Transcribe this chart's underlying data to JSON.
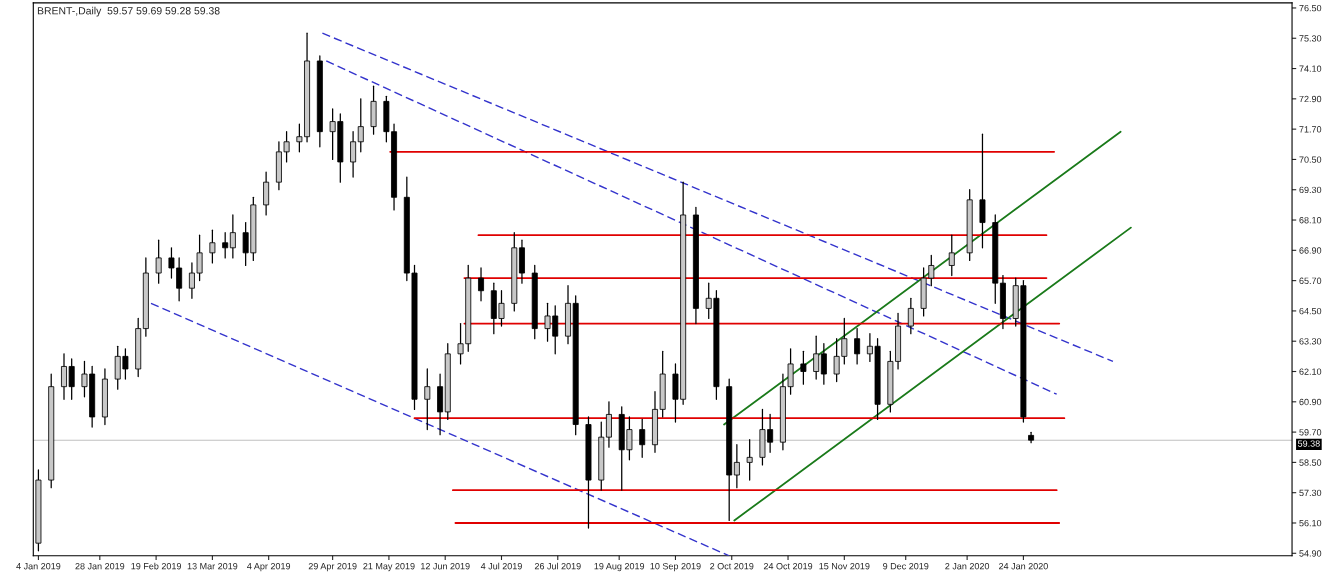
{
  "chart_data": {
    "type": "candlestick",
    "title": "BRENT-,Daily  59.57 59.69 59.28 59.38",
    "xlim": [
      "2019-01-02",
      "2020-05-08"
    ],
    "ylim": [
      54.8,
      76.7
    ],
    "xticks": [
      {
        "value": "2019-01-04",
        "label": "4 Jan 2019"
      },
      {
        "value": "2019-01-28",
        "label": "28 Jan 2019"
      },
      {
        "value": "2019-02-19",
        "label": "19 Feb 2019"
      },
      {
        "value": "2019-03-13",
        "label": "13 Mar 2019"
      },
      {
        "value": "2019-04-04",
        "label": "4 Apr 2019"
      },
      {
        "value": "2019-04-29",
        "label": "29 Apr 2019"
      },
      {
        "value": "2019-05-21",
        "label": "21 May 2019"
      },
      {
        "value": "2019-06-12",
        "label": "12 Jun 2019"
      },
      {
        "value": "2019-07-04",
        "label": "4 Jul 2019"
      },
      {
        "value": "2019-07-26",
        "label": "26 Jul 2019"
      },
      {
        "value": "2019-08-19",
        "label": "19 Aug 2019"
      },
      {
        "value": "2019-09-10",
        "label": "10 Sep 2019"
      },
      {
        "value": "2019-10-02",
        "label": "2 Oct 2019"
      },
      {
        "value": "2019-10-24",
        "label": "24 Oct 2019"
      },
      {
        "value": "2019-11-15",
        "label": "15 Nov 2019"
      },
      {
        "value": "2019-12-09",
        "label": "9 Dec 2019"
      },
      {
        "value": "2020-01-02",
        "label": "2 Jan 2020"
      },
      {
        "value": "2020-01-24",
        "label": "24 Jan 2020"
      }
    ],
    "yticks": [
      {
        "value": 54.9,
        "label": "54.90"
      },
      {
        "value": 56.1,
        "label": "56.10"
      },
      {
        "value": 57.3,
        "label": "57.30"
      },
      {
        "value": 58.5,
        "label": "58.50"
      },
      {
        "value": 59.7,
        "label": "59.70"
      },
      {
        "value": 60.9,
        "label": "60.90"
      },
      {
        "value": 62.1,
        "label": "62.10"
      },
      {
        "value": 63.3,
        "label": "63.30"
      },
      {
        "value": 64.5,
        "label": "64.50"
      },
      {
        "value": 65.7,
        "label": "65.70"
      },
      {
        "value": 66.9,
        "label": "66.90"
      },
      {
        "value": 68.1,
        "label": "68.10"
      },
      {
        "value": 69.3,
        "label": "69.30"
      },
      {
        "value": 70.5,
        "label": "70.50"
      },
      {
        "value": 71.7,
        "label": "71.70"
      },
      {
        "value": 72.9,
        "label": "72.90"
      },
      {
        "value": 74.1,
        "label": "74.10"
      },
      {
        "value": 75.3,
        "label": "75.30"
      },
      {
        "value": 76.5,
        "label": "76.50"
      }
    ],
    "grid": false,
    "ref_lines": [
      {
        "axis": "y",
        "value": 59.38,
        "label": "59.38",
        "color": "#c0c0c0"
      }
    ],
    "series": [
      {
        "type": "candlestick",
        "x": [
          "2019-01-04",
          "2019-01-09",
          "2019-01-14",
          "2019-01-17",
          "2019-01-22",
          "2019-01-25",
          "2019-01-30",
          "2019-02-04",
          "2019-02-07",
          "2019-02-12",
          "2019-02-15",
          "2019-02-20",
          "2019-02-25",
          "2019-02-28",
          "2019-03-05",
          "2019-03-08",
          "2019-03-13",
          "2019-03-18",
          "2019-03-21",
          "2019-03-26",
          "2019-03-29",
          "2019-04-03",
          "2019-04-08",
          "2019-04-11",
          "2019-04-16",
          "2019-04-19",
          "2019-04-24",
          "2019-04-29",
          "2019-05-02",
          "2019-05-07",
          "2019-05-10",
          "2019-05-15",
          "2019-05-20",
          "2019-05-23",
          "2019-05-28",
          "2019-05-31",
          "2019-06-05",
          "2019-06-10",
          "2019-06-13",
          "2019-06-18",
          "2019-06-21",
          "2019-06-26",
          "2019-07-01",
          "2019-07-04",
          "2019-07-09",
          "2019-07-12",
          "2019-07-17",
          "2019-07-22",
          "2019-07-25",
          "2019-07-30",
          "2019-08-02",
          "2019-08-07",
          "2019-08-12",
          "2019-08-15",
          "2019-08-20",
          "2019-08-23",
          "2019-08-28",
          "2019-09-02",
          "2019-09-05",
          "2019-09-10",
          "2019-09-13",
          "2019-09-18",
          "2019-09-23",
          "2019-09-26",
          "2019-10-01",
          "2019-10-04",
          "2019-10-09",
          "2019-10-14",
          "2019-10-17",
          "2019-10-22",
          "2019-10-25",
          "2019-10-30",
          "2019-11-04",
          "2019-11-07",
          "2019-11-12",
          "2019-11-15",
          "2019-11-20",
          "2019-11-25",
          "2019-11-28",
          "2019-12-03",
          "2019-12-06",
          "2019-12-11",
          "2019-12-16",
          "2019-12-19",
          "2019-12-27",
          "2020-01-03",
          "2020-01-08",
          "2020-01-13",
          "2020-01-16",
          "2020-01-21",
          "2020-01-24",
          "2020-01-27"
        ],
        "ohlc": [
          [
            55.3,
            58.2,
            55.0,
            57.8
          ],
          [
            57.8,
            62.0,
            57.5,
            61.5
          ],
          [
            61.5,
            62.8,
            61.0,
            62.3
          ],
          [
            62.3,
            62.6,
            61.0,
            61.5
          ],
          [
            61.5,
            62.5,
            61.1,
            62.0
          ],
          [
            62.0,
            62.3,
            59.9,
            60.3
          ],
          [
            60.3,
            62.2,
            60.0,
            61.8
          ],
          [
            61.8,
            63.1,
            61.4,
            62.7
          ],
          [
            62.7,
            63.0,
            61.8,
            62.2
          ],
          [
            62.2,
            64.2,
            61.9,
            63.8
          ],
          [
            63.8,
            66.6,
            63.5,
            66.0
          ],
          [
            66.0,
            67.3,
            65.6,
            66.6
          ],
          [
            66.6,
            67.0,
            65.8,
            66.2
          ],
          [
            66.2,
            66.6,
            64.9,
            65.4
          ],
          [
            65.4,
            66.4,
            65.0,
            66.0
          ],
          [
            66.0,
            67.5,
            65.7,
            66.8
          ],
          [
            66.8,
            67.7,
            66.4,
            67.2
          ],
          [
            67.2,
            67.6,
            66.6,
            67.0
          ],
          [
            67.0,
            68.3,
            66.6,
            67.6
          ],
          [
            67.6,
            68.0,
            66.3,
            66.8
          ],
          [
            66.8,
            69.0,
            66.5,
            68.7
          ],
          [
            68.7,
            70.0,
            68.3,
            69.6
          ],
          [
            69.6,
            71.2,
            69.3,
            70.8
          ],
          [
            70.8,
            71.6,
            70.4,
            71.2
          ],
          [
            71.2,
            71.9,
            70.8,
            71.4
          ],
          [
            71.4,
            75.5,
            71.2,
            74.4
          ],
          [
            74.4,
            74.6,
            71.0,
            71.6
          ],
          [
            71.6,
            72.5,
            70.5,
            72.0
          ],
          [
            72.0,
            72.3,
            69.6,
            70.4
          ],
          [
            70.4,
            71.6,
            69.8,
            71.2
          ],
          [
            71.2,
            72.9,
            70.8,
            71.8
          ],
          [
            71.8,
            73.4,
            71.5,
            72.8
          ],
          [
            72.8,
            73.0,
            71.2,
            71.6
          ],
          [
            71.6,
            71.9,
            68.5,
            69.0
          ],
          [
            69.0,
            69.8,
            65.7,
            66.0
          ],
          [
            66.0,
            66.3,
            60.6,
            61.0
          ],
          [
            61.0,
            62.2,
            59.8,
            61.5
          ],
          [
            61.5,
            62.0,
            59.6,
            60.5
          ],
          [
            60.5,
            63.2,
            60.2,
            62.8
          ],
          [
            62.8,
            64.0,
            62.4,
            63.2
          ],
          [
            63.2,
            66.3,
            62.9,
            65.8
          ],
          [
            65.8,
            66.2,
            64.9,
            65.3
          ],
          [
            65.3,
            65.6,
            63.6,
            64.2
          ],
          [
            64.2,
            65.3,
            63.9,
            64.8
          ],
          [
            64.8,
            67.6,
            64.5,
            67.0
          ],
          [
            67.0,
            67.3,
            65.6,
            66.0
          ],
          [
            66.0,
            66.3,
            63.4,
            63.8
          ],
          [
            63.8,
            64.8,
            63.3,
            64.3
          ],
          [
            64.3,
            64.7,
            62.8,
            63.5
          ],
          [
            63.5,
            65.5,
            63.2,
            64.8
          ],
          [
            64.8,
            65.1,
            59.6,
            60.0
          ],
          [
            60.0,
            60.3,
            55.9,
            57.8
          ],
          [
            57.8,
            60.1,
            57.4,
            59.5
          ],
          [
            59.5,
            60.9,
            59.1,
            60.4
          ],
          [
            60.4,
            60.7,
            57.4,
            59.0
          ],
          [
            59.0,
            60.3,
            58.6,
            59.8
          ],
          [
            59.8,
            60.2,
            58.7,
            59.2
          ],
          [
            59.2,
            61.3,
            58.9,
            60.6
          ],
          [
            60.6,
            62.9,
            60.3,
            62.0
          ],
          [
            62.0,
            62.4,
            60.1,
            61.0
          ],
          [
            61.0,
            69.6,
            60.8,
            68.3
          ],
          [
            68.3,
            68.6,
            64.0,
            64.6
          ],
          [
            64.6,
            65.6,
            64.2,
            65.0
          ],
          [
            65.0,
            65.3,
            61.0,
            61.5
          ],
          [
            61.5,
            61.8,
            56.2,
            58.0
          ],
          [
            58.0,
            59.2,
            57.5,
            58.5
          ],
          [
            58.5,
            59.4,
            57.8,
            58.7
          ],
          [
            58.7,
            60.6,
            58.4,
            59.8
          ],
          [
            59.8,
            60.4,
            58.9,
            59.3
          ],
          [
            59.3,
            62.0,
            59.0,
            61.5
          ],
          [
            61.5,
            63.0,
            61.2,
            62.4
          ],
          [
            62.4,
            62.9,
            61.6,
            62.1
          ],
          [
            62.1,
            63.5,
            61.8,
            62.8
          ],
          [
            62.8,
            63.2,
            61.6,
            62.0
          ],
          [
            62.0,
            63.4,
            61.7,
            62.7
          ],
          [
            62.7,
            64.2,
            62.4,
            63.4
          ],
          [
            63.4,
            63.8,
            62.4,
            62.8
          ],
          [
            62.8,
            63.6,
            62.5,
            63.1
          ],
          [
            63.1,
            63.4,
            60.2,
            60.8
          ],
          [
            60.8,
            62.9,
            60.5,
            62.5
          ],
          [
            62.5,
            64.4,
            62.2,
            63.9
          ],
          [
            63.9,
            65.0,
            63.6,
            64.6
          ],
          [
            64.6,
            66.2,
            64.3,
            65.8
          ],
          [
            65.8,
            66.7,
            65.5,
            66.3
          ],
          [
            66.3,
            67.5,
            65.9,
            66.8
          ],
          [
            66.8,
            69.3,
            66.5,
            68.9
          ],
          [
            68.9,
            71.5,
            67.0,
            68.0
          ],
          [
            68.0,
            68.3,
            64.8,
            65.6
          ],
          [
            65.6,
            65.9,
            63.8,
            64.2
          ],
          [
            64.2,
            65.8,
            63.9,
            65.5
          ],
          [
            65.5,
            65.7,
            60.1,
            60.3
          ],
          [
            59.57,
            59.69,
            59.28,
            59.38
          ]
        ]
      },
      {
        "type": "line",
        "x": [
          "2019-04-25",
          "2020-02-28"
        ],
        "values": [
          75.5,
          62.5
        ],
        "color": "#3333cc",
        "line_style": "dashed"
      },
      {
        "type": "line",
        "x": [
          "2019-04-26T12:00",
          "2020-02-06"
        ],
        "values": [
          74.4,
          61.2
        ],
        "color": "#3333cc",
        "line_style": "dashed"
      },
      {
        "type": "line",
        "x": [
          "2019-02-17",
          "2019-10-01"
        ],
        "values": [
          64.8,
          54.8
        ],
        "color": "#3333cc",
        "line_style": "dashed"
      },
      {
        "type": "line",
        "x": [
          "2019-09-29",
          "2020-03-02"
        ],
        "values": [
          60.0,
          71.6
        ],
        "color": "#1a7a1a",
        "line_style": "solid"
      },
      {
        "type": "line",
        "x": [
          "2019-10-03",
          "2020-03-06"
        ],
        "values": [
          56.2,
          67.8
        ],
        "color": "#1a7a1a",
        "line_style": "solid"
      },
      {
        "type": "line",
        "x": [
          "2019-05-21T12:00",
          "2020-02-05"
        ],
        "values": [
          70.8,
          70.8
        ],
        "color": "#e00000",
        "line_style": "solid"
      },
      {
        "type": "line",
        "x": [
          "2019-06-25",
          "2020-02-02"
        ],
        "values": [
          67.5,
          67.5
        ],
        "color": "#e00000",
        "line_style": "solid"
      },
      {
        "type": "line",
        "x": [
          "2019-06-19T12:00",
          "2020-02-02"
        ],
        "values": [
          65.8,
          65.8
        ],
        "color": "#e00000",
        "line_style": "solid"
      },
      {
        "type": "line",
        "x": [
          "2019-06-19T12:00",
          "2020-02-07"
        ],
        "values": [
          64.0,
          64.0
        ],
        "color": "#e00000",
        "line_style": "solid"
      },
      {
        "type": "line",
        "x": [
          "2019-05-31",
          "2020-02-09"
        ],
        "values": [
          60.25,
          60.25
        ],
        "color": "#e00000",
        "line_style": "solid"
      },
      {
        "type": "line",
        "x": [
          "2019-06-15",
          "2020-02-06"
        ],
        "values": [
          57.4,
          57.4
        ],
        "color": "#e00000",
        "line_style": "solid"
      },
      {
        "type": "line",
        "x": [
          "2019-06-16",
          "2020-02-07"
        ],
        "values": [
          56.1,
          56.1
        ],
        "color": "#e00000",
        "line_style": "solid"
      }
    ]
  }
}
